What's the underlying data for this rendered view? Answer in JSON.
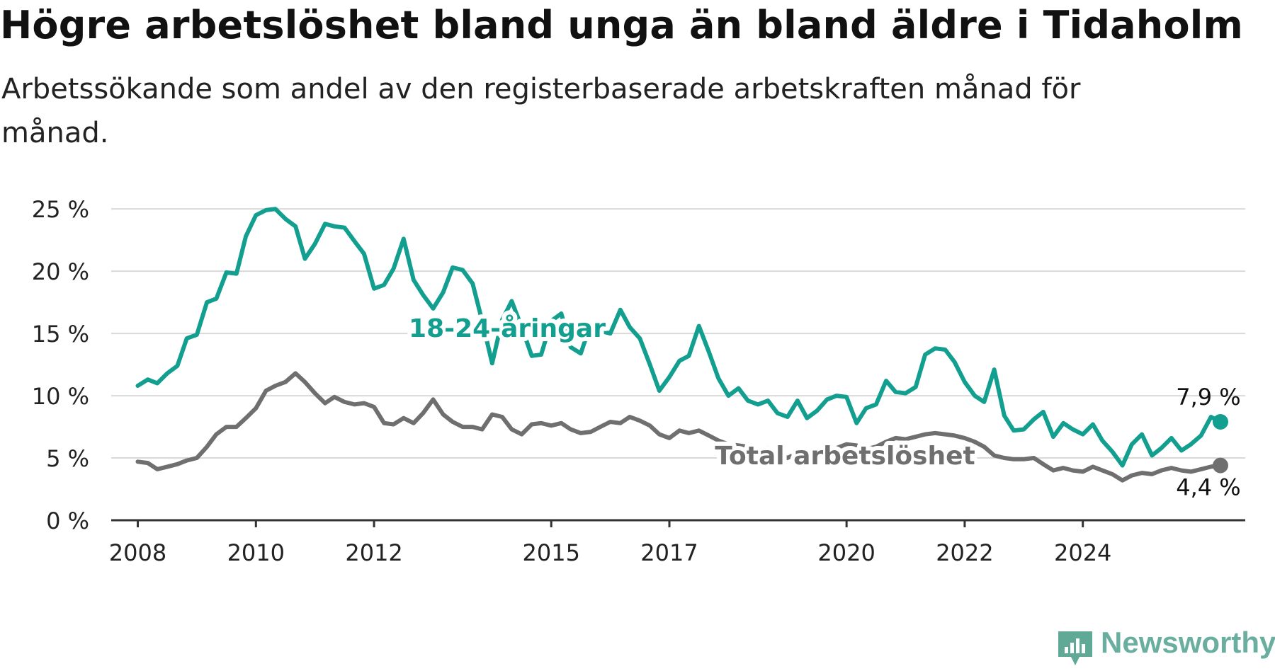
{
  "title": "Högre arbetslöshet bland unga än bland äldre i Tidaholm",
  "subtitle": "Arbetssökande som andel av den registerbaserade arbetskraften månad för månad.",
  "brand": {
    "name": "Newsworthy",
    "color": "#5fa996"
  },
  "chart_data": {
    "type": "line",
    "x_ticks": [
      "2008",
      "2010",
      "2012",
      "2015",
      "2017",
      "2020",
      "2022",
      "2024"
    ],
    "y_ticks": [
      "0 %",
      "5 %",
      "10 %",
      "15 %",
      "20 %",
      "25 %"
    ],
    "ylim": [
      0,
      27
    ],
    "grid": "horizontal",
    "series": [
      {
        "name": "18-24-åringar",
        "color": "#139f8f",
        "end_label": "7,9 %",
        "points": [
          [
            2008.0,
            10.8
          ],
          [
            2008.17,
            11.3
          ],
          [
            2008.33,
            11.0
          ],
          [
            2008.5,
            11.8
          ],
          [
            2008.67,
            12.4
          ],
          [
            2008.83,
            14.6
          ],
          [
            2009.0,
            14.9
          ],
          [
            2009.17,
            17.5
          ],
          [
            2009.33,
            17.8
          ],
          [
            2009.5,
            19.9
          ],
          [
            2009.67,
            19.8
          ],
          [
            2009.83,
            22.8
          ],
          [
            2010.0,
            24.5
          ],
          [
            2010.17,
            24.9
          ],
          [
            2010.33,
            25.0
          ],
          [
            2010.5,
            24.2
          ],
          [
            2010.67,
            23.6
          ],
          [
            2010.83,
            21.0
          ],
          [
            2011.0,
            22.2
          ],
          [
            2011.17,
            23.8
          ],
          [
            2011.33,
            23.6
          ],
          [
            2011.5,
            23.5
          ],
          [
            2011.67,
            22.4
          ],
          [
            2011.83,
            21.4
          ],
          [
            2012.0,
            18.6
          ],
          [
            2012.17,
            18.9
          ],
          [
            2012.33,
            20.2
          ],
          [
            2012.5,
            22.6
          ],
          [
            2012.67,
            19.3
          ],
          [
            2012.83,
            18.1
          ],
          [
            2013.0,
            17.0
          ],
          [
            2013.17,
            18.3
          ],
          [
            2013.33,
            20.3
          ],
          [
            2013.5,
            20.1
          ],
          [
            2013.67,
            19.0
          ],
          [
            2013.83,
            16.0
          ],
          [
            2014.0,
            12.6
          ],
          [
            2014.17,
            16.1
          ],
          [
            2014.33,
            17.6
          ],
          [
            2014.5,
            15.5
          ],
          [
            2014.67,
            13.2
          ],
          [
            2014.83,
            13.3
          ],
          [
            2015.0,
            16.0
          ],
          [
            2015.17,
            16.6
          ],
          [
            2015.33,
            13.9
          ],
          [
            2015.5,
            13.4
          ],
          [
            2015.67,
            15.8
          ],
          [
            2015.83,
            15.2
          ],
          [
            2016.0,
            15.0
          ],
          [
            2016.17,
            16.9
          ],
          [
            2016.33,
            15.5
          ],
          [
            2016.5,
            14.6
          ],
          [
            2016.67,
            12.5
          ],
          [
            2016.83,
            10.4
          ],
          [
            2017.0,
            11.5
          ],
          [
            2017.17,
            12.8
          ],
          [
            2017.33,
            13.2
          ],
          [
            2017.5,
            15.6
          ],
          [
            2017.67,
            13.5
          ],
          [
            2017.83,
            11.4
          ],
          [
            2018.0,
            10.0
          ],
          [
            2018.17,
            10.6
          ],
          [
            2018.33,
            9.6
          ],
          [
            2018.5,
            9.3
          ],
          [
            2018.67,
            9.6
          ],
          [
            2018.83,
            8.6
          ],
          [
            2019.0,
            8.3
          ],
          [
            2019.17,
            9.6
          ],
          [
            2019.33,
            8.2
          ],
          [
            2019.5,
            8.8
          ],
          [
            2019.67,
            9.7
          ],
          [
            2019.83,
            10.0
          ],
          [
            2020.0,
            9.9
          ],
          [
            2020.17,
            7.8
          ],
          [
            2020.33,
            9.0
          ],
          [
            2020.5,
            9.3
          ],
          [
            2020.67,
            11.2
          ],
          [
            2020.83,
            10.3
          ],
          [
            2021.0,
            10.2
          ],
          [
            2021.17,
            10.7
          ],
          [
            2021.33,
            13.3
          ],
          [
            2021.5,
            13.8
          ],
          [
            2021.67,
            13.7
          ],
          [
            2021.83,
            12.7
          ],
          [
            2022.0,
            11.1
          ],
          [
            2022.17,
            10.0
          ],
          [
            2022.33,
            9.5
          ],
          [
            2022.5,
            12.1
          ],
          [
            2022.67,
            8.4
          ],
          [
            2022.83,
            7.2
          ],
          [
            2023.0,
            7.3
          ],
          [
            2023.17,
            8.1
          ],
          [
            2023.33,
            8.7
          ],
          [
            2023.5,
            6.7
          ],
          [
            2023.67,
            7.8
          ],
          [
            2023.83,
            7.3
          ],
          [
            2024.0,
            6.9
          ],
          [
            2024.17,
            7.7
          ],
          [
            2024.33,
            6.4
          ],
          [
            2024.5,
            5.5
          ],
          [
            2024.67,
            4.4
          ],
          [
            2024.83,
            6.1
          ],
          [
            2025.0,
            6.9
          ],
          [
            2025.17,
            5.2
          ],
          [
            2025.33,
            5.8
          ],
          [
            2025.5,
            6.6
          ],
          [
            2025.67,
            5.6
          ],
          [
            2025.83,
            6.1
          ],
          [
            2026.0,
            6.8
          ],
          [
            2026.17,
            8.3
          ],
          [
            2026.33,
            7.9
          ]
        ]
      },
      {
        "name": "Total arbetslöshet",
        "color": "#6f6f6f",
        "end_label": "4,4 %",
        "points": [
          [
            2008.0,
            4.7
          ],
          [
            2008.17,
            4.6
          ],
          [
            2008.33,
            4.1
          ],
          [
            2008.5,
            4.3
          ],
          [
            2008.67,
            4.5
          ],
          [
            2008.83,
            4.8
          ],
          [
            2009.0,
            5.0
          ],
          [
            2009.17,
            5.9
          ],
          [
            2009.33,
            6.9
          ],
          [
            2009.5,
            7.5
          ],
          [
            2009.67,
            7.5
          ],
          [
            2009.83,
            8.2
          ],
          [
            2010.0,
            9.0
          ],
          [
            2010.17,
            10.4
          ],
          [
            2010.33,
            10.8
          ],
          [
            2010.5,
            11.1
          ],
          [
            2010.67,
            11.8
          ],
          [
            2010.83,
            11.1
          ],
          [
            2011.0,
            10.2
          ],
          [
            2011.17,
            9.4
          ],
          [
            2011.33,
            9.9
          ],
          [
            2011.5,
            9.5
          ],
          [
            2011.67,
            9.3
          ],
          [
            2011.83,
            9.4
          ],
          [
            2012.0,
            9.1
          ],
          [
            2012.17,
            7.8
          ],
          [
            2012.33,
            7.7
          ],
          [
            2012.5,
            8.2
          ],
          [
            2012.67,
            7.8
          ],
          [
            2012.83,
            8.6
          ],
          [
            2013.0,
            9.7
          ],
          [
            2013.17,
            8.5
          ],
          [
            2013.33,
            7.9
          ],
          [
            2013.5,
            7.5
          ],
          [
            2013.67,
            7.5
          ],
          [
            2013.83,
            7.3
          ],
          [
            2014.0,
            8.5
          ],
          [
            2014.17,
            8.3
          ],
          [
            2014.33,
            7.3
          ],
          [
            2014.5,
            6.9
          ],
          [
            2014.67,
            7.7
          ],
          [
            2014.83,
            7.8
          ],
          [
            2015.0,
            7.6
          ],
          [
            2015.17,
            7.8
          ],
          [
            2015.33,
            7.3
          ],
          [
            2015.5,
            7.0
          ],
          [
            2015.67,
            7.1
          ],
          [
            2015.83,
            7.5
          ],
          [
            2016.0,
            7.9
          ],
          [
            2016.17,
            7.8
          ],
          [
            2016.33,
            8.3
          ],
          [
            2016.5,
            8.0
          ],
          [
            2016.67,
            7.6
          ],
          [
            2016.83,
            6.9
          ],
          [
            2017.0,
            6.6
          ],
          [
            2017.17,
            7.2
          ],
          [
            2017.33,
            7.0
          ],
          [
            2017.5,
            7.2
          ],
          [
            2017.67,
            6.8
          ],
          [
            2017.83,
            6.4
          ],
          [
            2018.0,
            6.1
          ],
          [
            2018.17,
            6.0
          ],
          [
            2018.33,
            5.9
          ],
          [
            2018.5,
            5.6
          ],
          [
            2018.67,
            5.8
          ],
          [
            2018.83,
            5.4
          ],
          [
            2019.0,
            5.0
          ],
          [
            2019.17,
            5.4
          ],
          [
            2019.33,
            5.6
          ],
          [
            2019.5,
            5.1
          ],
          [
            2019.67,
            5.5
          ],
          [
            2019.83,
            5.8
          ],
          [
            2020.0,
            6.1
          ],
          [
            2020.17,
            6.0
          ],
          [
            2020.33,
            5.7
          ],
          [
            2020.5,
            5.9
          ],
          [
            2020.67,
            6.3
          ],
          [
            2020.83,
            6.6
          ],
          [
            2021.0,
            6.5
          ],
          [
            2021.17,
            6.7
          ],
          [
            2021.33,
            6.9
          ],
          [
            2021.5,
            7.0
          ],
          [
            2021.67,
            6.9
          ],
          [
            2021.83,
            6.8
          ],
          [
            2022.0,
            6.6
          ],
          [
            2022.17,
            6.3
          ],
          [
            2022.33,
            5.9
          ],
          [
            2022.5,
            5.2
          ],
          [
            2022.67,
            5.0
          ],
          [
            2022.83,
            4.9
          ],
          [
            2023.0,
            4.9
          ],
          [
            2023.17,
            5.0
          ],
          [
            2023.33,
            4.5
          ],
          [
            2023.5,
            4.0
          ],
          [
            2023.67,
            4.2
          ],
          [
            2023.83,
            4.0
          ],
          [
            2024.0,
            3.9
          ],
          [
            2024.17,
            4.3
          ],
          [
            2024.33,
            4.0
          ],
          [
            2024.5,
            3.7
          ],
          [
            2024.67,
            3.2
          ],
          [
            2024.83,
            3.6
          ],
          [
            2025.0,
            3.8
          ],
          [
            2025.17,
            3.7
          ],
          [
            2025.33,
            4.0
          ],
          [
            2025.5,
            4.2
          ],
          [
            2025.67,
            4.0
          ],
          [
            2025.83,
            3.9
          ],
          [
            2026.0,
            4.1
          ],
          [
            2026.17,
            4.3
          ],
          [
            2026.33,
            4.4
          ]
        ]
      }
    ]
  }
}
